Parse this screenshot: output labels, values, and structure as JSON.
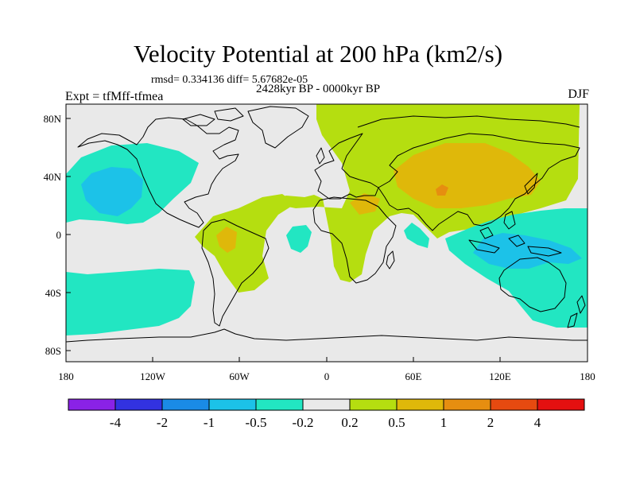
{
  "header": {
    "title": "Velocity Potential at 200 hPa (km2/s)",
    "stats": "rmsd= 0.334136 diff= 5.67682e-05",
    "subtitle": "2428kyr BP - 0000kyr BP",
    "experiment": "Expt = tfMff-tfmea",
    "season": "DJF"
  },
  "map": {
    "lat_ticks": [
      "80N",
      "40N",
      "0",
      "40S",
      "80S"
    ],
    "lon_ticks": [
      "180",
      "120W",
      "60W",
      "0",
      "60E",
      "120E",
      "180"
    ]
  },
  "colorbar": {
    "colors": [
      "#8a22e6",
      "#3232e0",
      "#1a8be6",
      "#1cc2e8",
      "#22e6c2",
      "#e9e9e9",
      "#b5de10",
      "#dfb80a",
      "#e68e10",
      "#e64a10",
      "#e41010"
    ],
    "labels": [
      "-4",
      "-2",
      "-1",
      "-0.5",
      "-0.2",
      "0.2",
      "0.5",
      "1",
      "2",
      "4"
    ]
  },
  "colors": {
    "background": "#e9e9e9",
    "positive_weak": "#b5de10",
    "positive_mid": "#dfb80a",
    "positive_strong": "#e68e10",
    "negative_weak": "#22e6c2",
    "negative_mid": "#1cc2e8",
    "negative_strong": "#1a8be6"
  }
}
